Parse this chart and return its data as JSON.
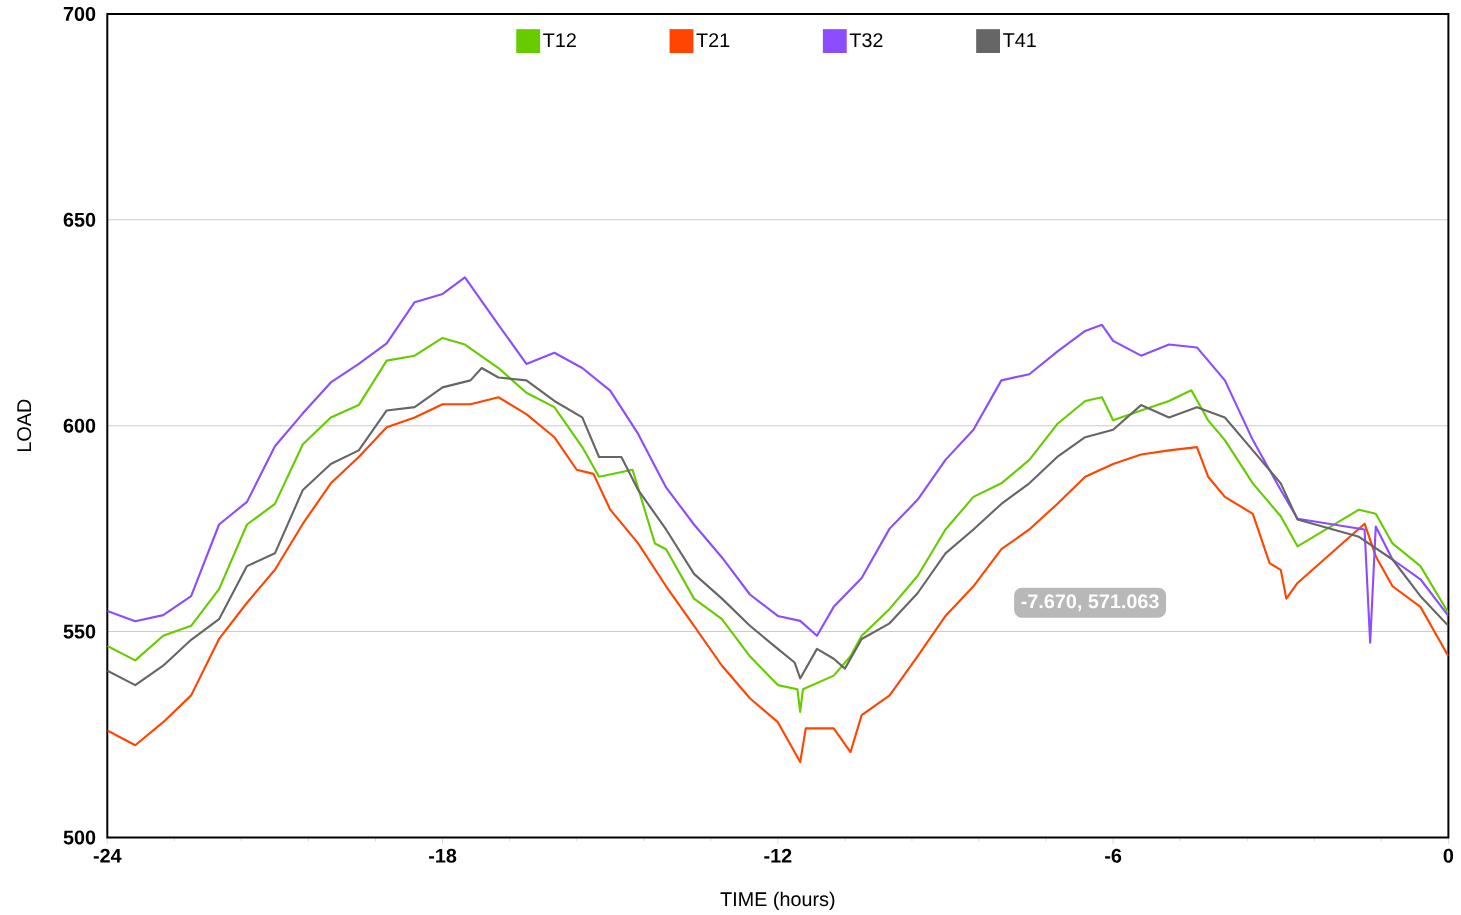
{
  "chart_data": {
    "type": "line",
    "xlabel": "TIME (hours)",
    "ylabel": "LOAD",
    "xlim": [
      -24,
      0
    ],
    "ylim": [
      500,
      700
    ],
    "xticks": [
      -24,
      -18,
      -12,
      -6,
      0
    ],
    "yticks": [
      500,
      550,
      600,
      650,
      700
    ],
    "grid": "y",
    "legend": "top",
    "line_style": "solid",
    "annotations": [
      "-7.670, 571.063"
    ],
    "series": [
      {
        "name": "T12",
        "color": "#66cc00",
        "x": [
          -24,
          -23.5,
          -23,
          -22.5,
          -22,
          -21.5,
          -21,
          -20.5,
          -20,
          -19.5,
          -19,
          -18.5,
          -18,
          -17.6,
          -17,
          -16.5,
          -16,
          -15.5,
          -15.2,
          -14.6,
          -14.2,
          -14,
          -13.5,
          -13,
          -12.5,
          -12,
          -11.65,
          -11.6,
          -11.55,
          -11,
          -10.7,
          -10.5,
          -10,
          -9.5,
          -9,
          -8.5,
          -8,
          -7.5,
          -7,
          -6.5,
          -6.2,
          -6,
          -5.5,
          -5,
          -4.6,
          -4.3,
          -4,
          -3.5,
          -3,
          -2.7,
          -1.6,
          -1.3,
          -1,
          -0.5,
          0
        ],
        "values": [
          546.5,
          543,
          549,
          551.4,
          560.3,
          576,
          581,
          595.5,
          602,
          605,
          615.8,
          617,
          621.3,
          619.7,
          614,
          608,
          604.5,
          594.8,
          587.6,
          589.3,
          571.4,
          570,
          558,
          553,
          544,
          537,
          536,
          530.5,
          536,
          539.3,
          544,
          549,
          555.5,
          563.5,
          574.8,
          582.7,
          586,
          591.7,
          600.4,
          606,
          606.9,
          601.3,
          603.7,
          606,
          608.6,
          601.3,
          596.5,
          586,
          578,
          570.7,
          579.6,
          578.6,
          571.4,
          565.9,
          554.5
        ]
      },
      {
        "name": "T21",
        "color": "#ff4500",
        "x": [
          -24,
          -23.5,
          -23,
          -22.5,
          -22,
          -21.5,
          -21,
          -20.5,
          -20,
          -19.5,
          -19,
          -18.5,
          -18,
          -17.5,
          -17,
          -16.5,
          -16,
          -15.6,
          -15.3,
          -15,
          -14.5,
          -14,
          -13.5,
          -13,
          -12.5,
          -12,
          -11.6,
          -11.5,
          -11,
          -10.7,
          -10.5,
          -10,
          -9.5,
          -9,
          -8.5,
          -8,
          -7.5,
          -7,
          -6.5,
          -6,
          -5.5,
          -5,
          -4.5,
          -4.3,
          -4,
          -3.5,
          -3.2,
          -3,
          -2.9,
          -2.7,
          -1.5,
          -1.3,
          -1,
          -0.5,
          0
        ],
        "values": [
          526,
          522.4,
          528,
          534.5,
          548.2,
          557,
          565,
          576.2,
          586,
          592.4,
          599.6,
          602,
          605.2,
          605.2,
          606.9,
          602.8,
          597.2,
          589.3,
          588.3,
          579.6,
          571.4,
          561,
          551.4,
          541.7,
          533.8,
          528,
          518.3,
          526.5,
          526.5,
          520.7,
          529.7,
          534.5,
          544,
          553.8,
          561,
          570,
          574.8,
          581,
          587.6,
          590.7,
          593,
          594,
          594.8,
          587.6,
          582.7,
          578.6,
          566.6,
          565,
          558,
          561.8,
          576.2,
          568.3,
          561,
          556,
          544
        ]
      },
      {
        "name": "T32",
        "color": "#8c4cff",
        "x": [
          -24,
          -23.5,
          -23,
          -22.5,
          -22,
          -21.5,
          -21,
          -20.5,
          -20,
          -19.5,
          -19,
          -18.5,
          -18,
          -17.6,
          -17,
          -16.5,
          -16,
          -15.5,
          -15,
          -14.5,
          -14,
          -13.5,
          -13,
          -12.5,
          -12,
          -11.6,
          -11.3,
          -11,
          -10.5,
          -10,
          -9.5,
          -9,
          -8.5,
          -8,
          -7.5,
          -7,
          -6.5,
          -6.2,
          -6,
          -5.5,
          -5,
          -4.5,
          -4,
          -3.5,
          -3,
          -2.7,
          -1.5,
          -1.4,
          -1.3,
          -1,
          -0.5,
          0
        ],
        "values": [
          555,
          552.5,
          554,
          558.6,
          576,
          581.5,
          595,
          603,
          610.5,
          615,
          620,
          630,
          632,
          636,
          624.5,
          615,
          617.7,
          614,
          608.5,
          598,
          585,
          576,
          568,
          559,
          553.8,
          552.6,
          549,
          556,
          563,
          575,
          582,
          591.7,
          599,
          611,
          612.5,
          618,
          623,
          624.5,
          620.6,
          617,
          619.7,
          619,
          611,
          596.5,
          584.4,
          577.4,
          574.8,
          547.3,
          575.5,
          567.5,
          562.7,
          553.8
        ]
      },
      {
        "name": "T41",
        "color": "#666666",
        "x": [
          -24,
          -23.5,
          -23,
          -22.5,
          -22,
          -21.5,
          -21,
          -20.5,
          -20,
          -19.5,
          -19,
          -18.5,
          -18,
          -17.5,
          -17.3,
          -17,
          -16.5,
          -16,
          -15.5,
          -15.2,
          -14.8,
          -14.5,
          -14,
          -13.5,
          -13,
          -12.5,
          -12,
          -11.7,
          -11.6,
          -11.3,
          -11,
          -10.8,
          -10.5,
          -10,
          -9.5,
          -9,
          -8.5,
          -8,
          -7.5,
          -7,
          -6.5,
          -6,
          -5.5,
          -5,
          -4.5,
          -4,
          -3.5,
          -3,
          -2.7,
          -1.6,
          -1,
          -0.5,
          0
        ],
        "values": [
          540.5,
          537,
          541.7,
          548,
          553,
          565.9,
          569,
          584.4,
          590.7,
          594,
          603.7,
          604.5,
          609.3,
          611,
          614,
          611.7,
          611,
          606,
          602,
          592.4,
          592.4,
          584.4,
          574.8,
          564,
          558,
          551.4,
          545.8,
          542.5,
          538.6,
          545.8,
          543.4,
          541,
          548.2,
          552,
          559.3,
          569,
          574.8,
          581,
          586,
          592.4,
          597.2,
          599,
          605,
          602,
          604.5,
          602,
          594,
          586,
          577.2,
          573,
          567.5,
          558.6,
          551.4
        ]
      }
    ]
  }
}
